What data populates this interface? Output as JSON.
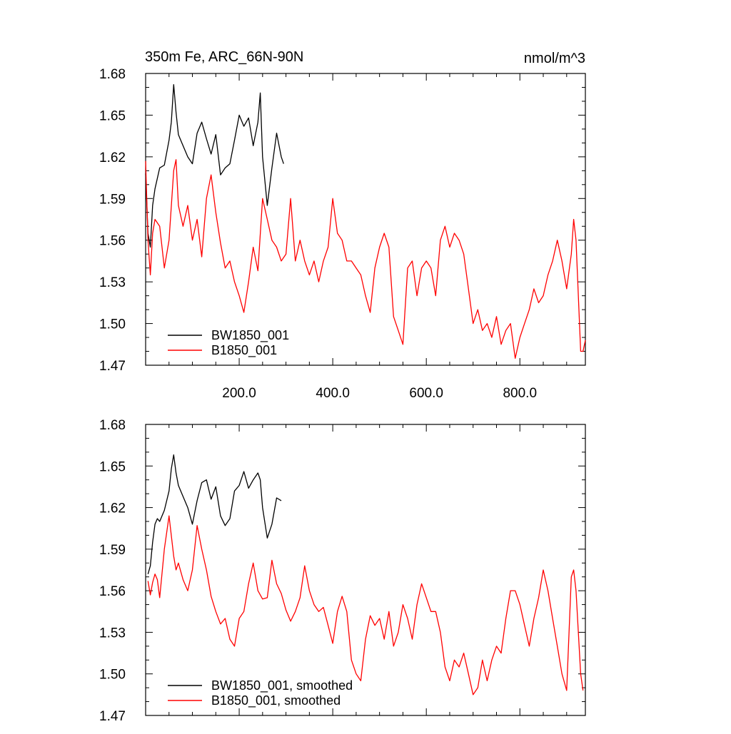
{
  "title_left": "350m Fe, ARC_66N-90N",
  "title_right": "nmol/m^3",
  "chart_data": [
    {
      "type": "line",
      "xlim": [
        0,
        940
      ],
      "ylim": [
        1.47,
        1.68
      ],
      "x_ticks": [
        200,
        400,
        600,
        800
      ],
      "x_tick_labels": [
        "200.0",
        "400.0",
        "600.0",
        "800.0"
      ],
      "y_ticks": [
        1.47,
        1.5,
        1.53,
        1.56,
        1.59,
        1.62,
        1.65,
        1.68
      ],
      "y_tick_labels": [
        "1.47",
        "1.50",
        "1.53",
        "1.56",
        "1.59",
        "1.62",
        "1.65",
        "1.68"
      ],
      "legend_position": "bottom-left",
      "series": [
        {
          "name": "BW1850_001",
          "color": "#000000",
          "x": [
            0,
            5,
            10,
            15,
            20,
            30,
            40,
            50,
            55,
            60,
            65,
            70,
            80,
            90,
            100,
            110,
            120,
            130,
            140,
            150,
            160,
            170,
            180,
            190,
            200,
            210,
            220,
            230,
            240,
            245,
            250,
            260,
            270,
            280,
            290,
            295
          ],
          "y": [
            1.608,
            1.565,
            1.555,
            1.585,
            1.597,
            1.612,
            1.614,
            1.632,
            1.645,
            1.672,
            1.652,
            1.636,
            1.628,
            1.62,
            1.615,
            1.637,
            1.645,
            1.633,
            1.622,
            1.636,
            1.607,
            1.612,
            1.615,
            1.632,
            1.65,
            1.642,
            1.648,
            1.628,
            1.645,
            1.666,
            1.62,
            1.585,
            1.612,
            1.637,
            1.62,
            1.615
          ]
        },
        {
          "name": "B1850_001",
          "color": "#ff0000",
          "x": [
            0,
            5,
            10,
            15,
            20,
            30,
            40,
            50,
            60,
            65,
            70,
            80,
            90,
            100,
            110,
            120,
            130,
            140,
            150,
            160,
            170,
            180,
            190,
            200,
            210,
            220,
            230,
            240,
            250,
            260,
            270,
            280,
            290,
            300,
            310,
            320,
            330,
            340,
            350,
            360,
            370,
            380,
            390,
            400,
            410,
            420,
            430,
            440,
            450,
            460,
            470,
            480,
            490,
            500,
            510,
            520,
            530,
            540,
            550,
            560,
            570,
            580,
            590,
            600,
            610,
            620,
            630,
            640,
            650,
            660,
            670,
            680,
            690,
            700,
            710,
            720,
            730,
            740,
            750,
            760,
            770,
            780,
            790,
            800,
            810,
            820,
            830,
            840,
            850,
            860,
            870,
            880,
            890,
            900,
            910,
            915,
            920,
            930,
            935,
            940
          ],
          "y": [
            1.617,
            1.56,
            1.535,
            1.565,
            1.575,
            1.57,
            1.54,
            1.56,
            1.61,
            1.618,
            1.585,
            1.57,
            1.585,
            1.56,
            1.575,
            1.548,
            1.59,
            1.607,
            1.58,
            1.558,
            1.54,
            1.545,
            1.53,
            1.52,
            1.508,
            1.53,
            1.555,
            1.538,
            1.59,
            1.575,
            1.56,
            1.555,
            1.545,
            1.55,
            1.59,
            1.545,
            1.56,
            1.545,
            1.535,
            1.545,
            1.53,
            1.545,
            1.555,
            1.59,
            1.565,
            1.56,
            1.545,
            1.545,
            1.54,
            1.535,
            1.52,
            1.508,
            1.54,
            1.555,
            1.565,
            1.555,
            1.505,
            1.495,
            1.485,
            1.54,
            1.545,
            1.52,
            1.54,
            1.545,
            1.54,
            1.52,
            1.56,
            1.57,
            1.555,
            1.565,
            1.56,
            1.55,
            1.525,
            1.5,
            1.51,
            1.495,
            1.5,
            1.49,
            1.505,
            1.485,
            1.495,
            1.5,
            1.475,
            1.49,
            1.5,
            1.51,
            1.525,
            1.515,
            1.52,
            1.535,
            1.545,
            1.56,
            1.545,
            1.525,
            1.55,
            1.575,
            1.56,
            1.48,
            1.48,
            1.488
          ]
        }
      ]
    },
    {
      "type": "line",
      "xlim": [
        0,
        940
      ],
      "ylim": [
        1.47,
        1.68
      ],
      "y_ticks": [
        1.47,
        1.5,
        1.53,
        1.56,
        1.59,
        1.62,
        1.65,
        1.68
      ],
      "y_tick_labels": [
        "1.47",
        "1.50",
        "1.53",
        "1.56",
        "1.59",
        "1.62",
        "1.65",
        "1.68"
      ],
      "legend_position": "bottom-left",
      "series": [
        {
          "name": "BW1850_001, smoothed",
          "color": "#000000",
          "x": [
            5,
            10,
            15,
            20,
            25,
            30,
            40,
            50,
            55,
            60,
            65,
            70,
            80,
            90,
            100,
            110,
            120,
            130,
            140,
            150,
            160,
            170,
            180,
            190,
            200,
            210,
            220,
            230,
            240,
            245,
            250,
            260,
            270,
            280,
            290
          ],
          "y": [
            1.572,
            1.578,
            1.595,
            1.608,
            1.612,
            1.61,
            1.618,
            1.632,
            1.648,
            1.658,
            1.645,
            1.636,
            1.628,
            1.62,
            1.608,
            1.625,
            1.638,
            1.64,
            1.626,
            1.635,
            1.614,
            1.607,
            1.612,
            1.632,
            1.636,
            1.646,
            1.634,
            1.64,
            1.645,
            1.64,
            1.62,
            1.598,
            1.608,
            1.627,
            1.625
          ]
        },
        {
          "name": "B1850_001, smoothed",
          "color": "#ff0000",
          "x": [
            5,
            10,
            15,
            20,
            25,
            30,
            40,
            50,
            60,
            65,
            70,
            80,
            90,
            100,
            110,
            120,
            130,
            140,
            150,
            160,
            170,
            180,
            190,
            200,
            210,
            220,
            230,
            240,
            250,
            260,
            270,
            280,
            290,
            300,
            310,
            320,
            330,
            340,
            350,
            360,
            370,
            380,
            390,
            400,
            410,
            420,
            430,
            440,
            450,
            460,
            470,
            480,
            490,
            500,
            510,
            520,
            530,
            540,
            550,
            560,
            570,
            580,
            590,
            600,
            610,
            620,
            630,
            640,
            650,
            660,
            670,
            680,
            690,
            700,
            710,
            720,
            730,
            740,
            750,
            760,
            770,
            780,
            790,
            800,
            810,
            820,
            830,
            840,
            850,
            860,
            870,
            880,
            890,
            900,
            910,
            915,
            920,
            930,
            935
          ],
          "y": [
            1.567,
            1.557,
            1.566,
            1.572,
            1.568,
            1.555,
            1.59,
            1.614,
            1.585,
            1.575,
            1.58,
            1.568,
            1.56,
            1.575,
            1.607,
            1.59,
            1.575,
            1.556,
            1.545,
            1.536,
            1.54,
            1.525,
            1.52,
            1.54,
            1.545,
            1.565,
            1.58,
            1.56,
            1.554,
            1.555,
            1.582,
            1.565,
            1.558,
            1.546,
            1.538,
            1.545,
            1.555,
            1.578,
            1.56,
            1.55,
            1.545,
            1.548,
            1.535,
            1.522,
            1.545,
            1.556,
            1.545,
            1.51,
            1.5,
            1.495,
            1.525,
            1.542,
            1.535,
            1.54,
            1.525,
            1.545,
            1.52,
            1.53,
            1.55,
            1.54,
            1.525,
            1.55,
            1.565,
            1.555,
            1.545,
            1.545,
            1.53,
            1.505,
            1.495,
            1.51,
            1.505,
            1.515,
            1.5,
            1.485,
            1.49,
            1.51,
            1.495,
            1.51,
            1.52,
            1.515,
            1.54,
            1.56,
            1.56,
            1.55,
            1.535,
            1.52,
            1.54,
            1.555,
            1.575,
            1.56,
            1.54,
            1.52,
            1.5,
            1.488,
            1.57,
            1.575,
            1.56,
            1.5,
            1.488
          ]
        }
      ]
    }
  ]
}
